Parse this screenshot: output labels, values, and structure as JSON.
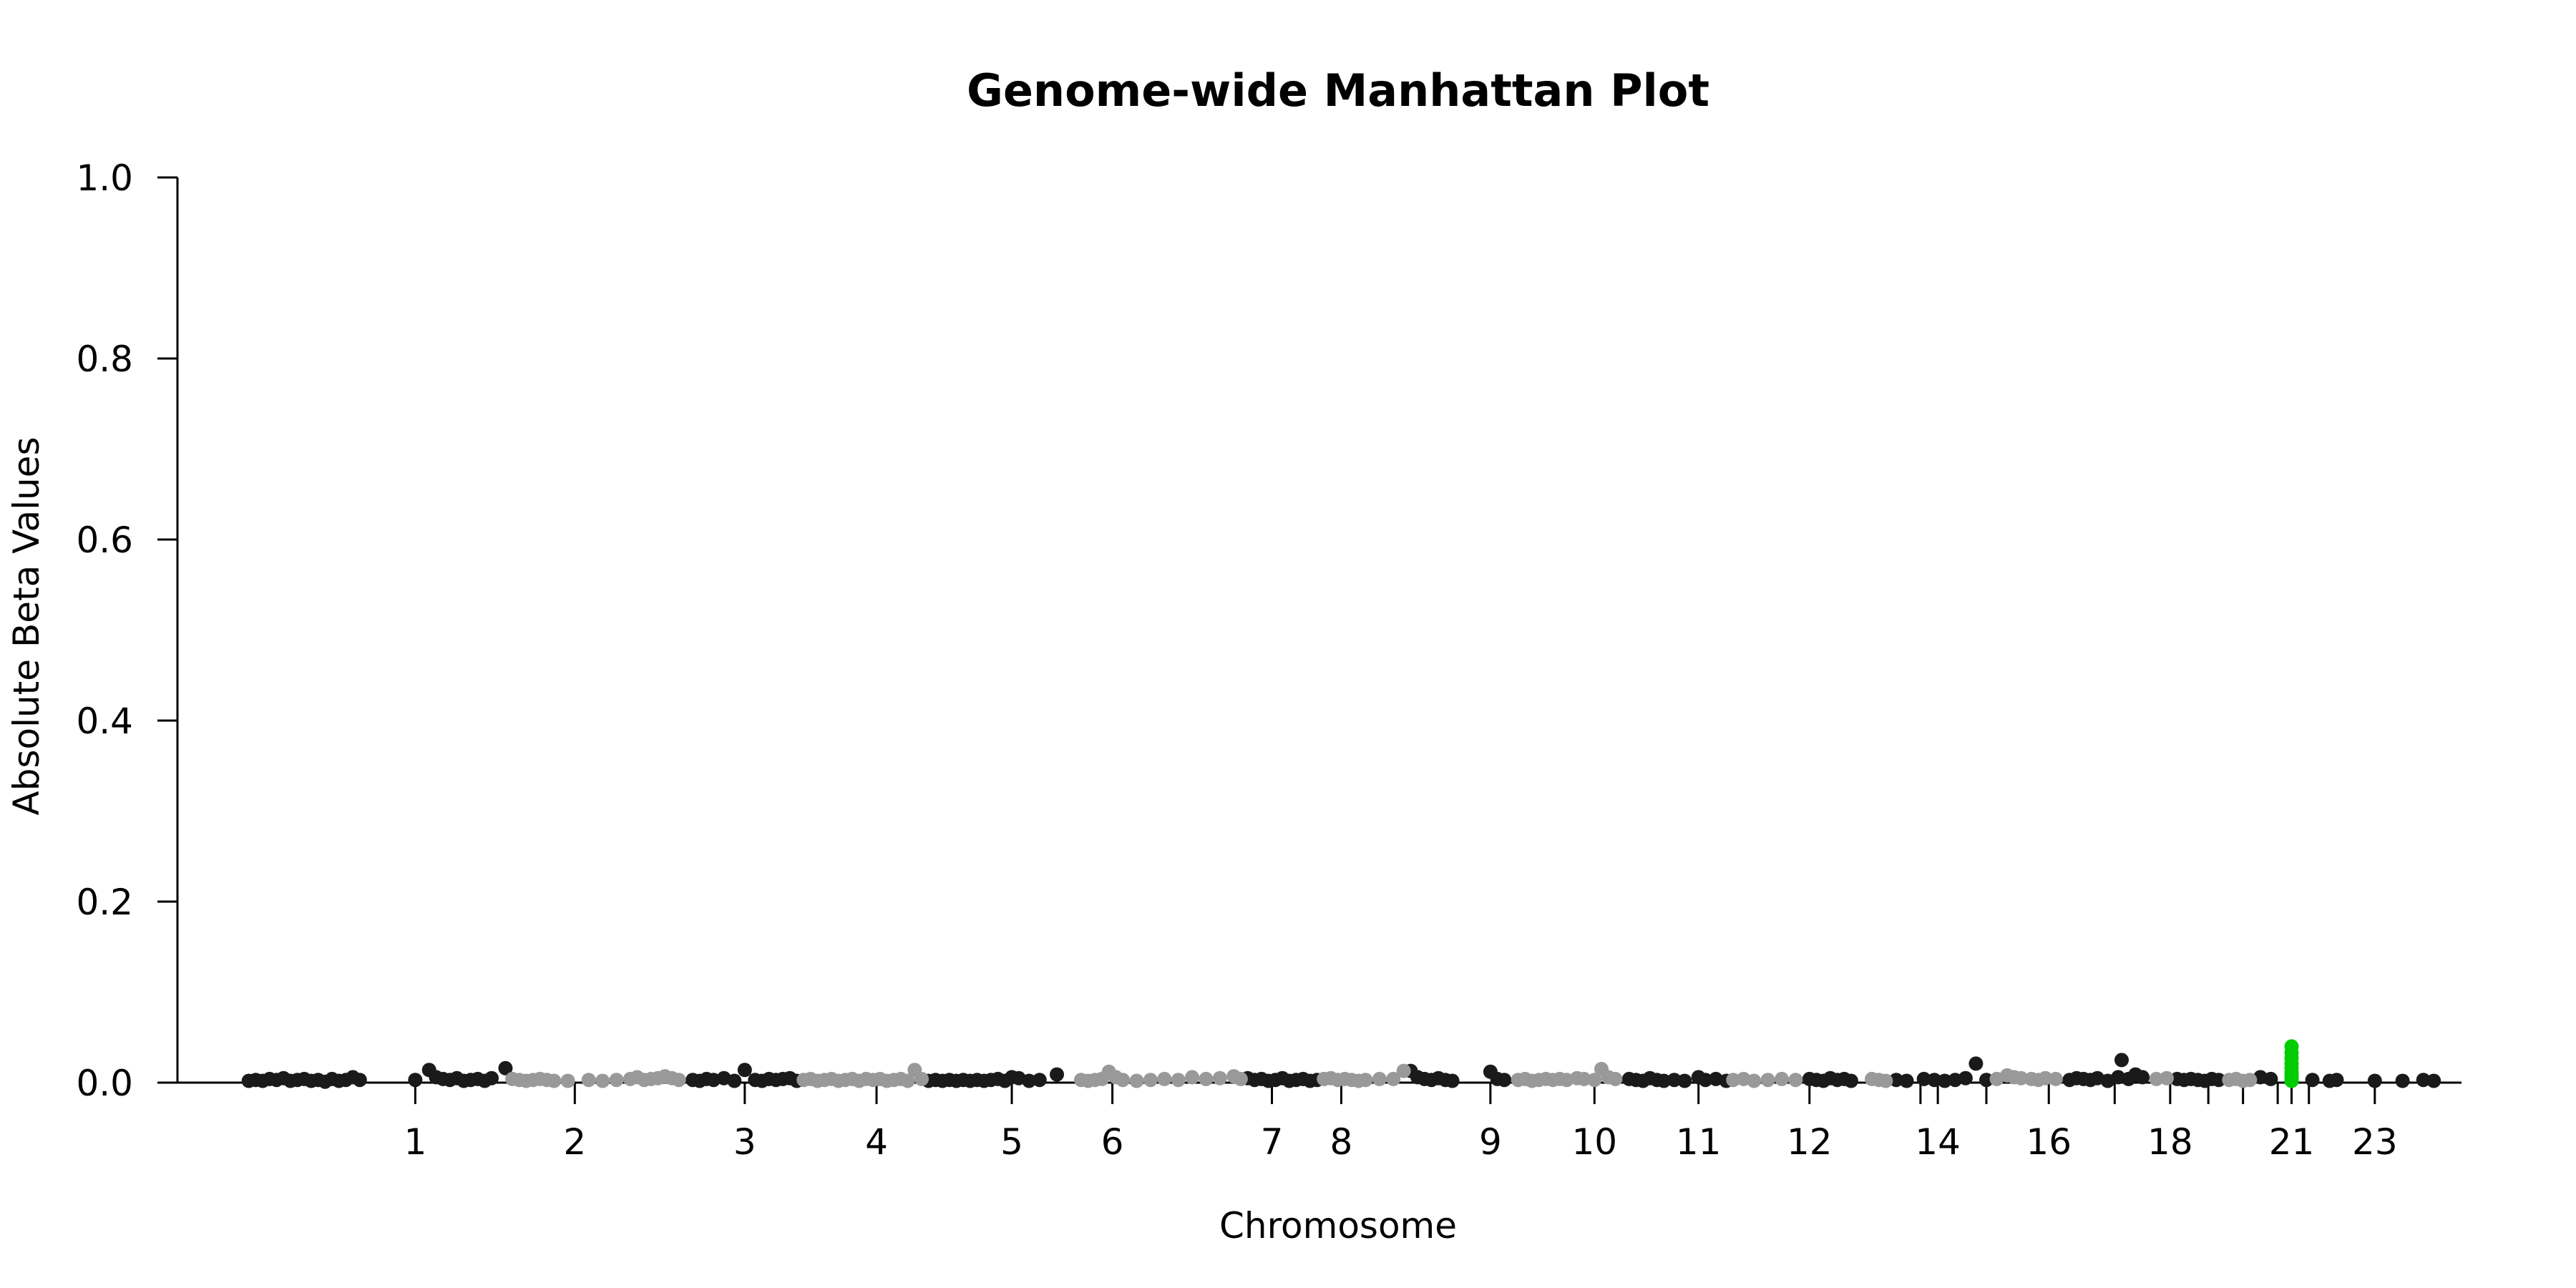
{
  "chart_data": {
    "type": "scatter",
    "title": "Genome-wide Manhattan Plot",
    "xlabel": "Chromosome",
    "ylabel": "Absolute Beta Values",
    "ylim": [
      0,
      1.0
    ],
    "xlim": [
      -1.5,
      30.5
    ],
    "y_ticks": [
      "0.0",
      "0.2",
      "0.4",
      "0.6",
      "0.8",
      "1.0"
    ],
    "y_tick_values": [
      0,
      0.2,
      0.4,
      0.6,
      0.8,
      1.0
    ],
    "x_ticks": [
      "1",
      "2",
      "3",
      "4",
      "5",
      "6",
      "7",
      "8",
      "9",
      "10",
      "11",
      "12",
      "14",
      "16",
      "18",
      "21",
      "23"
    ],
    "x_tick_values": [
      1.0,
      3.3,
      5.75,
      7.65,
      9.6,
      11.05,
      13.35,
      14.35,
      16.5,
      18.0,
      19.5,
      21.1,
      22.95,
      24.55,
      26.3,
      28.05,
      29.25
    ],
    "minor_ticks": [
      22.7,
      23.65,
      25.5,
      26.85,
      27.35,
      27.85,
      28.3
    ],
    "colors": {
      "odd": "#1a1a1a",
      "even": "#999999",
      "highlight": "#00cc00"
    },
    "grid": false,
    "legend": "none",
    "series": [
      {
        "color": "odd",
        "points": [
          [
            -1.4,
            0.002
          ],
          [
            -1.3,
            0.003
          ],
          [
            -1.2,
            0.002
          ],
          [
            -1.1,
            0.004
          ],
          [
            -1.0,
            0.003
          ],
          [
            -0.9,
            0.005
          ],
          [
            -0.8,
            0.002
          ],
          [
            -0.7,
            0.003
          ],
          [
            -0.6,
            0.004
          ],
          [
            -0.5,
            0.002
          ],
          [
            -0.4,
            0.003
          ],
          [
            -0.3,
            0.001
          ],
          [
            -0.2,
            0.004
          ],
          [
            -0.1,
            0.002
          ],
          [
            0.0,
            0.003
          ],
          [
            0.1,
            0.006
          ],
          [
            0.2,
            0.003
          ],
          [
            1.0,
            0.003
          ],
          [
            1.2,
            0.014
          ],
          [
            1.3,
            0.006
          ],
          [
            1.4,
            0.004
          ],
          [
            1.5,
            0.003
          ],
          [
            1.6,
            0.005
          ],
          [
            1.7,
            0.002
          ],
          [
            1.8,
            0.003
          ],
          [
            1.9,
            0.004
          ],
          [
            2.0,
            0.002
          ],
          [
            2.1,
            0.005
          ],
          [
            2.3,
            0.016
          ],
          [
            5.0,
            0.003
          ],
          [
            5.1,
            0.002
          ],
          [
            5.2,
            0.004
          ],
          [
            5.3,
            0.003
          ],
          [
            5.45,
            0.005
          ],
          [
            5.6,
            0.002
          ],
          [
            5.75,
            0.014
          ],
          [
            5.9,
            0.003
          ],
          [
            6.0,
            0.002
          ],
          [
            6.1,
            0.004
          ],
          [
            6.2,
            0.003
          ],
          [
            6.3,
            0.004
          ],
          [
            6.4,
            0.005
          ],
          [
            6.5,
            0.002
          ],
          [
            8.4,
            0.002
          ],
          [
            8.5,
            0.003
          ],
          [
            8.6,
            0.002
          ],
          [
            8.7,
            0.003
          ],
          [
            8.8,
            0.002
          ],
          [
            8.9,
            0.003
          ],
          [
            9.0,
            0.002
          ],
          [
            9.1,
            0.003
          ],
          [
            9.2,
            0.002
          ],
          [
            9.3,
            0.003
          ],
          [
            9.4,
            0.004
          ],
          [
            9.5,
            0.002
          ],
          [
            9.6,
            0.006
          ],
          [
            9.7,
            0.005
          ],
          [
            9.85,
            0.002
          ],
          [
            10.0,
            0.003
          ],
          [
            10.25,
            0.009
          ],
          [
            13.0,
            0.005
          ],
          [
            13.1,
            0.003
          ],
          [
            13.2,
            0.004
          ],
          [
            13.3,
            0.002
          ],
          [
            13.4,
            0.003
          ],
          [
            13.5,
            0.005
          ],
          [
            13.6,
            0.002
          ],
          [
            13.7,
            0.003
          ],
          [
            13.8,
            0.004
          ],
          [
            13.9,
            0.002
          ],
          [
            14.0,
            0.003
          ],
          [
            15.35,
            0.013
          ],
          [
            15.45,
            0.006
          ],
          [
            15.55,
            0.004
          ],
          [
            15.65,
            0.003
          ],
          [
            15.75,
            0.005
          ],
          [
            15.85,
            0.003
          ],
          [
            15.95,
            0.002
          ],
          [
            16.5,
            0.012
          ],
          [
            16.6,
            0.004
          ],
          [
            16.7,
            0.003
          ],
          [
            18.5,
            0.004
          ],
          [
            18.6,
            0.003
          ],
          [
            18.7,
            0.002
          ],
          [
            18.8,
            0.005
          ],
          [
            18.9,
            0.003
          ],
          [
            19.0,
            0.002
          ],
          [
            19.15,
            0.003
          ],
          [
            19.3,
            0.002
          ],
          [
            19.5,
            0.006
          ],
          [
            19.6,
            0.003
          ],
          [
            19.75,
            0.004
          ],
          [
            19.9,
            0.002
          ],
          [
            21.1,
            0.004
          ],
          [
            21.2,
            0.003
          ],
          [
            21.3,
            0.002
          ],
          [
            21.4,
            0.005
          ],
          [
            21.5,
            0.003
          ],
          [
            21.6,
            0.004
          ],
          [
            21.7,
            0.002
          ],
          [
            22.35,
            0.003
          ],
          [
            22.5,
            0.002
          ],
          [
            22.75,
            0.004
          ],
          [
            22.9,
            0.003
          ],
          [
            23.05,
            0.002
          ],
          [
            23.2,
            0.003
          ],
          [
            23.35,
            0.005
          ],
          [
            23.5,
            0.021
          ],
          [
            23.65,
            0.003
          ],
          [
            24.85,
            0.003
          ],
          [
            24.95,
            0.005
          ],
          [
            25.05,
            0.004
          ],
          [
            25.15,
            0.003
          ],
          [
            25.25,
            0.005
          ],
          [
            25.4,
            0.002
          ],
          [
            25.55,
            0.006
          ],
          [
            25.6,
            0.025
          ],
          [
            25.7,
            0.004
          ],
          [
            25.8,
            0.009
          ],
          [
            25.9,
            0.006
          ],
          [
            26.4,
            0.004
          ],
          [
            26.5,
            0.003
          ],
          [
            26.6,
            0.004
          ],
          [
            26.7,
            0.003
          ],
          [
            26.8,
            0.002
          ],
          [
            26.9,
            0.004
          ],
          [
            27.0,
            0.003
          ],
          [
            27.6,
            0.006
          ],
          [
            27.75,
            0.004
          ],
          [
            28.35,
            0.003
          ],
          [
            28.6,
            0.002
          ],
          [
            28.7,
            0.003
          ],
          [
            29.25,
            0.002
          ],
          [
            29.65,
            0.002
          ],
          [
            29.95,
            0.003
          ],
          [
            30.1,
            0.002
          ]
        ]
      },
      {
        "color": "even",
        "points": [
          [
            2.4,
            0.004
          ],
          [
            2.5,
            0.003
          ],
          [
            2.6,
            0.002
          ],
          [
            2.7,
            0.003
          ],
          [
            2.8,
            0.004
          ],
          [
            2.9,
            0.003
          ],
          [
            3.0,
            0.002
          ],
          [
            3.2,
            0.002
          ],
          [
            3.5,
            0.003
          ],
          [
            3.7,
            0.002
          ],
          [
            3.9,
            0.003
          ],
          [
            4.1,
            0.004
          ],
          [
            4.2,
            0.006
          ],
          [
            4.3,
            0.003
          ],
          [
            4.4,
            0.004
          ],
          [
            4.5,
            0.005
          ],
          [
            4.6,
            0.007
          ],
          [
            4.7,
            0.005
          ],
          [
            4.8,
            0.003
          ],
          [
            6.6,
            0.003
          ],
          [
            6.7,
            0.004
          ],
          [
            6.8,
            0.002
          ],
          [
            6.9,
            0.003
          ],
          [
            7.0,
            0.004
          ],
          [
            7.1,
            0.002
          ],
          [
            7.2,
            0.003
          ],
          [
            7.3,
            0.004
          ],
          [
            7.4,
            0.002
          ],
          [
            7.5,
            0.004
          ],
          [
            7.6,
            0.003
          ],
          [
            7.7,
            0.004
          ],
          [
            7.8,
            0.002
          ],
          [
            7.9,
            0.003
          ],
          [
            8.0,
            0.004
          ],
          [
            8.1,
            0.002
          ],
          [
            8.2,
            0.014
          ],
          [
            8.3,
            0.004
          ],
          [
            10.6,
            0.003
          ],
          [
            10.7,
            0.002
          ],
          [
            10.8,
            0.003
          ],
          [
            10.9,
            0.004
          ],
          [
            11.0,
            0.012
          ],
          [
            11.1,
            0.006
          ],
          [
            11.2,
            0.003
          ],
          [
            11.4,
            0.002
          ],
          [
            11.6,
            0.003
          ],
          [
            11.8,
            0.004
          ],
          [
            12.0,
            0.003
          ],
          [
            12.2,
            0.006
          ],
          [
            12.4,
            0.004
          ],
          [
            12.6,
            0.005
          ],
          [
            12.8,
            0.007
          ],
          [
            12.9,
            0.004
          ],
          [
            14.1,
            0.004
          ],
          [
            14.2,
            0.005
          ],
          [
            14.3,
            0.003
          ],
          [
            14.4,
            0.004
          ],
          [
            14.5,
            0.003
          ],
          [
            14.6,
            0.002
          ],
          [
            14.7,
            0.003
          ],
          [
            14.9,
            0.004
          ],
          [
            15.1,
            0.004
          ],
          [
            15.25,
            0.013
          ],
          [
            16.9,
            0.003
          ],
          [
            17.0,
            0.004
          ],
          [
            17.1,
            0.002
          ],
          [
            17.2,
            0.003
          ],
          [
            17.3,
            0.004
          ],
          [
            17.4,
            0.003
          ],
          [
            17.5,
            0.004
          ],
          [
            17.6,
            0.003
          ],
          [
            17.75,
            0.005
          ],
          [
            17.85,
            0.004
          ],
          [
            18.0,
            0.003
          ],
          [
            18.1,
            0.015
          ],
          [
            18.2,
            0.006
          ],
          [
            18.3,
            0.004
          ],
          [
            20.0,
            0.003
          ],
          [
            20.15,
            0.004
          ],
          [
            20.3,
            0.002
          ],
          [
            20.5,
            0.003
          ],
          [
            20.7,
            0.004
          ],
          [
            20.9,
            0.003
          ],
          [
            22.0,
            0.004
          ],
          [
            22.1,
            0.003
          ],
          [
            22.2,
            0.002
          ],
          [
            23.8,
            0.004
          ],
          [
            23.95,
            0.008
          ],
          [
            24.05,
            0.006
          ],
          [
            24.15,
            0.005
          ],
          [
            24.3,
            0.004
          ],
          [
            24.4,
            0.003
          ],
          [
            24.5,
            0.005
          ],
          [
            24.65,
            0.004
          ],
          [
            26.1,
            0.004
          ],
          [
            26.25,
            0.005
          ],
          [
            27.15,
            0.003
          ],
          [
            27.25,
            0.004
          ],
          [
            27.35,
            0.002
          ],
          [
            27.45,
            0.003
          ]
        ]
      },
      {
        "color": "highlight",
        "points": [
          [
            28.05,
            0.04
          ],
          [
            28.05,
            0.033
          ],
          [
            28.05,
            0.027
          ],
          [
            28.05,
            0.021
          ],
          [
            28.05,
            0.016
          ],
          [
            28.05,
            0.011
          ],
          [
            28.05,
            0.007
          ],
          [
            28.05,
            0.004
          ],
          [
            28.05,
            0.002
          ]
        ]
      }
    ]
  }
}
